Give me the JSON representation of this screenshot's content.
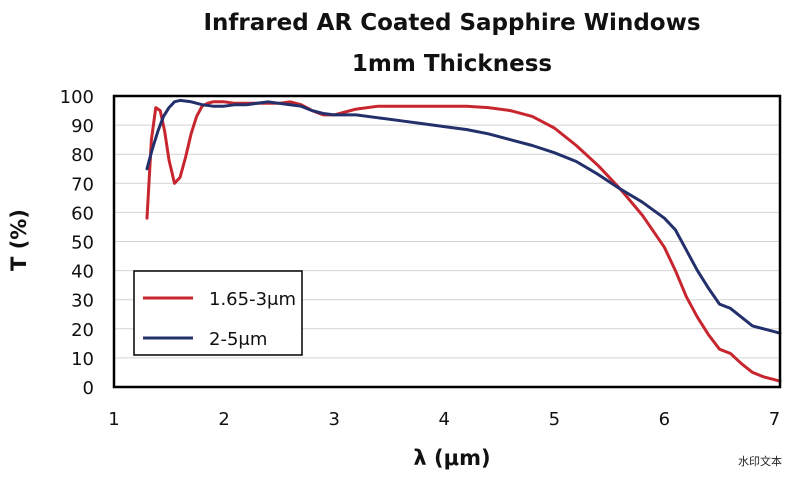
{
  "chart_data": {
    "type": "line",
    "title": "Infrared AR Coated Sapphire Windows",
    "subtitle": "1mm Thickness",
    "xlabel": "λ (μm)",
    "ylabel": "T (%)",
    "xlim": [
      1,
      7.05
    ],
    "ylim": [
      0,
      100
    ],
    "xticks": [
      1,
      2,
      3,
      4,
      5,
      6,
      7
    ],
    "yticks": [
      0,
      10,
      20,
      30,
      40,
      50,
      60,
      70,
      80,
      90,
      100
    ],
    "grid": "horizontal",
    "legend_position": "bottom-left",
    "series": [
      {
        "name": "1.65-3μm",
        "color": "#c8262f",
        "x": [
          1.3,
          1.34,
          1.38,
          1.42,
          1.46,
          1.5,
          1.55,
          1.6,
          1.65,
          1.7,
          1.75,
          1.8,
          1.85,
          1.9,
          1.95,
          2.0,
          2.1,
          2.2,
          2.3,
          2.4,
          2.5,
          2.6,
          2.7,
          2.8,
          2.9,
          3.0,
          3.1,
          3.2,
          3.4,
          3.6,
          3.8,
          4.0,
          4.2,
          4.4,
          4.6,
          4.8,
          5.0,
          5.2,
          5.4,
          5.6,
          5.8,
          6.0,
          6.1,
          6.2,
          6.3,
          6.4,
          6.5,
          6.6,
          6.7,
          6.8,
          6.9,
          7.0,
          7.05
        ],
        "y": [
          58,
          85,
          96,
          95,
          88,
          78,
          70,
          72,
          79,
          87,
          93,
          96.5,
          97.5,
          98,
          98,
          98,
          97.5,
          97.5,
          97.5,
          97.5,
          97.5,
          98,
          97,
          95,
          93.5,
          93.5,
          94.5,
          95.5,
          96.5,
          96.5,
          96.5,
          96.5,
          96.5,
          96,
          95,
          93,
          89,
          83,
          76,
          68,
          59,
          48,
          40,
          31,
          24,
          18,
          13,
          11.5,
          8,
          5,
          3.5,
          2.5,
          2
        ]
      },
      {
        "name": "2-5μm",
        "color": "#23306b",
        "x": [
          1.3,
          1.35,
          1.4,
          1.45,
          1.5,
          1.55,
          1.6,
          1.7,
          1.8,
          1.9,
          2.0,
          2.1,
          2.2,
          2.3,
          2.4,
          2.5,
          2.6,
          2.7,
          2.8,
          2.9,
          3.0,
          3.2,
          3.4,
          3.6,
          3.8,
          4.0,
          4.2,
          4.4,
          4.6,
          4.8,
          5.0,
          5.2,
          5.4,
          5.6,
          5.8,
          6.0,
          6.1,
          6.2,
          6.3,
          6.4,
          6.5,
          6.6,
          6.7,
          6.8,
          6.9,
          7.0,
          7.05
        ],
        "y": [
          75,
          82,
          88,
          93,
          96,
          98,
          98.5,
          98,
          97,
          96.5,
          96.5,
          97,
          97,
          97.5,
          98,
          97.5,
          97,
          96.5,
          95,
          94,
          93.5,
          93.5,
          92.5,
          91.5,
          90.5,
          89.5,
          88.5,
          87,
          85,
          83,
          80.5,
          77.5,
          73,
          68,
          63.5,
          58,
          54,
          47,
          40,
          34,
          28.5,
          27,
          24,
          21,
          20,
          19,
          18.5
        ]
      }
    ]
  },
  "watermark": "水印文本"
}
